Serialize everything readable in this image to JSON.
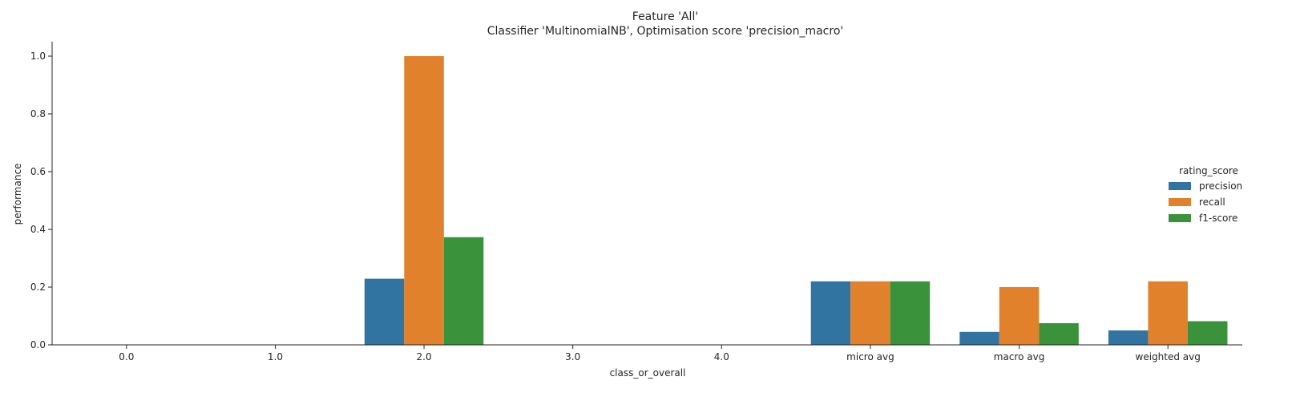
{
  "chart_data": {
    "type": "bar",
    "title": "Feature 'All'",
    "subtitle": "Classifier 'MultinomialNB', Optimisation score 'precision_macro'",
    "xlabel": "class_or_overall",
    "ylabel": "performance",
    "ylim": [
      0,
      1.05
    ],
    "yticks": [
      "0.0",
      "0.2",
      "0.4",
      "0.6",
      "0.8",
      "1.0"
    ],
    "categories": [
      "0.0",
      "1.0",
      "2.0",
      "3.0",
      "4.0",
      "micro avg",
      "macro avg",
      "weighted avg"
    ],
    "legend": {
      "title": "rating_score",
      "placement": "right"
    },
    "series": [
      {
        "name": "precision",
        "color": "#3274a1",
        "values": [
          0,
          0,
          0.229,
          0,
          0,
          0.22,
          0.045,
          0.05
        ]
      },
      {
        "name": "recall",
        "color": "#e1812c",
        "values": [
          0,
          0,
          1.0,
          0,
          0,
          0.22,
          0.2,
          0.22
        ]
      },
      {
        "name": "f1-score",
        "color": "#3a923a",
        "values": [
          0,
          0,
          0.373,
          0,
          0,
          0.22,
          0.075,
          0.082
        ]
      }
    ]
  }
}
